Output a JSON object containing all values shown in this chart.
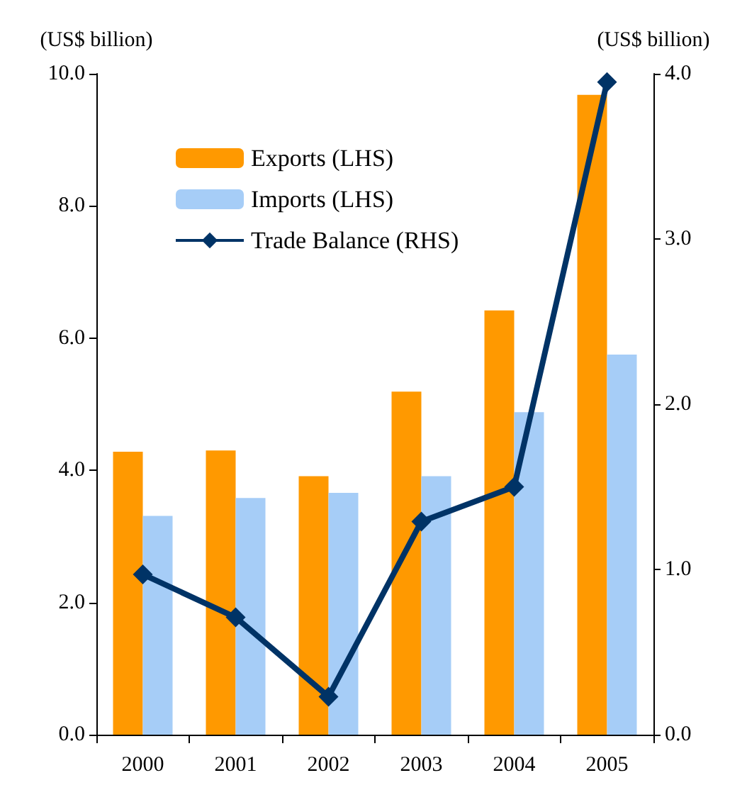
{
  "chart_data": {
    "type": "bar",
    "ylabel": "(US$ billion)",
    "y2label": "(US$ billion)",
    "categories": [
      "2000",
      "2001",
      "2002",
      "2003",
      "2004",
      "2005"
    ],
    "series": [
      {
        "name": "Exports (LHS)",
        "color": "#ff9900",
        "values": [
          4.28,
          4.3,
          3.91,
          5.19,
          6.42,
          9.68
        ]
      },
      {
        "name": "Imports (LHS)",
        "color": "#a6cdf7",
        "values": [
          3.31,
          3.58,
          3.66,
          3.91,
          4.88,
          5.75
        ]
      },
      {
        "name": "Trade Balance (RHS)",
        "type": "line",
        "axis": "y2",
        "color": "#003366",
        "marker": "diamond",
        "values": [
          0.97,
          0.71,
          0.23,
          1.29,
          1.5,
          3.95
        ]
      }
    ],
    "ylim": [
      0,
      10
    ],
    "yticks": [
      {
        "value": 0,
        "label": "0.0"
      },
      {
        "value": 2,
        "label": "2.0"
      },
      {
        "value": 4,
        "label": "4.0"
      },
      {
        "value": 6,
        "label": "6.0"
      },
      {
        "value": 8,
        "label": "8.0"
      },
      {
        "value": 10,
        "label": "10.0"
      }
    ],
    "y2lim": [
      0,
      4
    ],
    "y2ticks": [
      {
        "value": 0,
        "label": "0.0"
      },
      {
        "value": 1,
        "label": "1.0"
      },
      {
        "value": 2,
        "label": "2.0"
      },
      {
        "value": 3,
        "label": "3.0"
      },
      {
        "value": 4,
        "label": "4.0"
      }
    ],
    "grid": false,
    "legend": "top left"
  }
}
